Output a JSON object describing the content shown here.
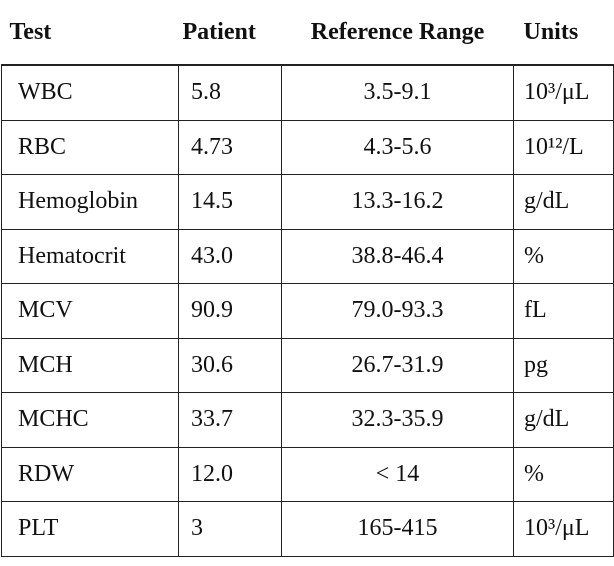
{
  "table": {
    "header": [
      "Test",
      "Patient",
      "Reference Range",
      "Units"
    ],
    "rows": [
      [
        "WBC",
        "5.8",
        "3.5-9.1",
        "10³/μL"
      ],
      [
        "RBC",
        "4.73",
        "4.3-5.6",
        "10¹²/L"
      ],
      [
        "Hemoglobin",
        "14.5",
        "13.3-16.2",
        "g/dL"
      ],
      [
        "Hematocrit",
        "43.0",
        "38.8-46.4",
        "%"
      ],
      [
        "MCV",
        "90.9",
        "79.0-93.3",
        "fL"
      ],
      [
        "MCH",
        "30.6",
        "26.7-31.9",
        "pg"
      ],
      [
        "MCHC",
        "33.7",
        "32.3-35.9",
        "g/dL"
      ],
      [
        "RDW",
        "12.0",
        "< 14",
        "%"
      ],
      [
        "PLT",
        "3",
        "165-415",
        "10³/μL"
      ]
    ]
  }
}
